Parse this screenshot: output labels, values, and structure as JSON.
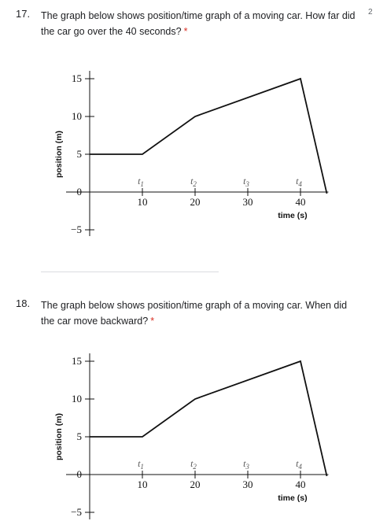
{
  "questions": [
    {
      "number": "17.",
      "text": "The graph below shows position/time graph of a moving car. How far did the car go over the 40 seconds?",
      "required_mark": "*",
      "points": "2"
    },
    {
      "number": "18.",
      "text": "The graph below shows position/time graph of a moving car. When did the car move backward?",
      "required_mark": "*",
      "points": ""
    }
  ],
  "chart_data": [
    {
      "type": "line",
      "x": [
        0,
        10,
        20,
        40,
        45
      ],
      "y": [
        5,
        5,
        10,
        15,
        -0.2
      ],
      "xlabel": "time (s)",
      "ylabel": "position (m)",
      "xticks": [
        "10",
        "20",
        "30",
        "40"
      ],
      "yticks": [
        "15",
        "10",
        "5",
        "0",
        "−5"
      ],
      "time_markers": [
        "t1",
        "t2",
        "t3",
        "t4"
      ],
      "xlim": [
        0,
        45
      ],
      "ylim": [
        -5,
        15
      ]
    },
    {
      "type": "line",
      "x": [
        0,
        10,
        20,
        40,
        45
      ],
      "y": [
        5,
        5,
        10,
        15,
        -0.2
      ],
      "xlabel": "time (s)",
      "ylabel": "position (m)",
      "xticks": [
        "10",
        "20",
        "30",
        "40"
      ],
      "yticks": [
        "15",
        "10",
        "5",
        "0",
        "−5"
      ],
      "time_markers": [
        "t1",
        "t2",
        "t3",
        "t4"
      ],
      "xlim": [
        0,
        45
      ],
      "ylim": [
        -5,
        15
      ]
    }
  ]
}
